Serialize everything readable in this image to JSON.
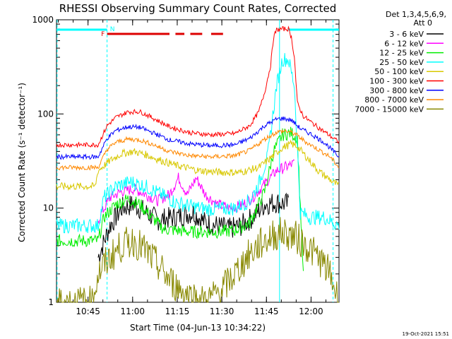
{
  "chart_data": {
    "type": "line",
    "title": "RHESSI Observing Summary Count Rates, Corrected",
    "xlabel": "Start Time (04-Jun-13 10:34:22)",
    "ylabel": "Corrected Count Rate (s⁻¹ detector⁻¹)",
    "yscale": "log",
    "ylim": [
      1,
      1000
    ],
    "xlim_minutes": [
      0,
      95
    ],
    "xticks": [
      {
        "label": "10:45",
        "t": 10.6
      },
      {
        "label": "11:00",
        "t": 25.6
      },
      {
        "label": "11:15",
        "t": 40.6
      },
      {
        "label": "11:30",
        "t": 55.6
      },
      {
        "label": "11:45",
        "t": 70.6
      },
      {
        "label": "12:00",
        "t": 85.6
      }
    ],
    "yticks": [
      {
        "label": "1",
        "v": 1
      },
      {
        "label": "10",
        "v": 10
      },
      {
        "label": "100",
        "v": 100
      },
      {
        "label": "1000",
        "v": 1000
      }
    ],
    "legend": {
      "header": [
        "Det 1,3,4,5,6,9,",
        "Att 0"
      ],
      "placement": "right"
    },
    "series": [
      {
        "name": "3 - 6 keV",
        "color": "#000000",
        "points": [
          [
            14,
            3
          ],
          [
            18,
            6.5
          ],
          [
            22,
            10
          ],
          [
            26,
            11
          ],
          [
            30,
            9
          ],
          [
            34,
            7.5
          ],
          [
            40,
            8
          ],
          [
            46,
            9
          ],
          [
            50,
            7
          ],
          [
            54,
            6.5
          ],
          [
            58,
            6
          ],
          [
            62,
            6.5
          ],
          [
            66,
            8
          ],
          [
            70,
            11
          ],
          [
            74,
            11.5
          ],
          [
            78,
            11
          ]
        ]
      },
      {
        "name": "6 - 12 keV",
        "color": "#ff00ff",
        "points": [
          [
            14,
            7.5
          ],
          [
            18,
            13
          ],
          [
            22,
            15
          ],
          [
            26,
            16
          ],
          [
            30,
            14
          ],
          [
            34,
            12
          ],
          [
            38,
            14
          ],
          [
            41,
            21
          ],
          [
            44,
            14
          ],
          [
            47,
            21
          ],
          [
            50,
            14
          ],
          [
            54,
            11
          ],
          [
            58,
            10
          ],
          [
            62,
            10.5
          ],
          [
            66,
            13
          ],
          [
            70,
            18
          ],
          [
            74,
            25
          ],
          [
            78,
            28
          ],
          [
            80,
            30
          ]
        ]
      },
      {
        "name": "12 - 25 keV",
        "color": "#00ee00",
        "points": [
          [
            0,
            4.5
          ],
          [
            13,
            4.5
          ],
          [
            14,
            4.5
          ],
          [
            16,
            8
          ],
          [
            20,
            11
          ],
          [
            24,
            12.5
          ],
          [
            28,
            11
          ],
          [
            32,
            8
          ],
          [
            36,
            6
          ],
          [
            40,
            5.8
          ],
          [
            45,
            5.6
          ],
          [
            50,
            5.6
          ],
          [
            55,
            5.6
          ],
          [
            60,
            5.8
          ],
          [
            65,
            7
          ],
          [
            70,
            15
          ],
          [
            73,
            40
          ],
          [
            76,
            60
          ],
          [
            79,
            63
          ],
          [
            81,
            55
          ],
          [
            83,
            2
          ]
        ]
      },
      {
        "name": "25 - 50 keV",
        "color": "#00ffff",
        "points": [
          [
            0,
            6.5
          ],
          [
            14,
            6.5
          ],
          [
            16,
            13
          ],
          [
            20,
            17
          ],
          [
            25,
            19
          ],
          [
            30,
            17
          ],
          [
            35,
            14
          ],
          [
            40,
            11.5
          ],
          [
            45,
            10.5
          ],
          [
            50,
            9.8
          ],
          [
            55,
            9.8
          ],
          [
            60,
            10
          ],
          [
            65,
            12
          ],
          [
            68,
            18
          ],
          [
            71,
            35
          ],
          [
            74,
            200
          ],
          [
            76,
            380
          ],
          [
            78,
            380
          ],
          [
            80,
            200
          ],
          [
            82,
            9
          ],
          [
            85,
            8
          ],
          [
            90,
            8
          ],
          [
            95,
            6.5
          ]
        ]
      },
      {
        "name": "50 - 100 keV",
        "color": "#d8c800",
        "points": [
          [
            0,
            17
          ],
          [
            13,
            17
          ],
          [
            14,
            25
          ],
          [
            18,
            32
          ],
          [
            22,
            38
          ],
          [
            26,
            40
          ],
          [
            30,
            37
          ],
          [
            34,
            33
          ],
          [
            40,
            28.5
          ],
          [
            48,
            25
          ],
          [
            55,
            24
          ],
          [
            62,
            24
          ],
          [
            68,
            27
          ],
          [
            72,
            34
          ],
          [
            76,
            44
          ],
          [
            79,
            48
          ],
          [
            81,
            45
          ],
          [
            84,
            35
          ],
          [
            88,
            25
          ],
          [
            92,
            20
          ],
          [
            95,
            17
          ]
        ]
      },
      {
        "name": "100 - 300 keV",
        "color": "#ff0000",
        "points": [
          [
            0,
            47
          ],
          [
            14,
            47
          ],
          [
            17,
            75
          ],
          [
            20,
            92
          ],
          [
            24,
            105
          ],
          [
            28,
            106
          ],
          [
            32,
            92
          ],
          [
            38,
            73
          ],
          [
            45,
            63
          ],
          [
            52,
            60
          ],
          [
            60,
            62
          ],
          [
            65,
            75
          ],
          [
            68,
            105
          ],
          [
            70,
            170
          ],
          [
            72,
            330
          ],
          [
            73,
            650
          ],
          [
            74,
            780
          ],
          [
            76,
            800
          ],
          [
            78,
            800
          ],
          [
            79,
            650
          ],
          [
            80,
            400
          ],
          [
            81,
            130
          ],
          [
            83,
            95
          ],
          [
            86,
            80
          ],
          [
            90,
            65
          ],
          [
            95,
            50
          ]
        ]
      },
      {
        "name": "300 - 800 keV",
        "color": "#0000ff",
        "points": [
          [
            0,
            35
          ],
          [
            14,
            35
          ],
          [
            17,
            55
          ],
          [
            20,
            67
          ],
          [
            24,
            73
          ],
          [
            28,
            72
          ],
          [
            32,
            64
          ],
          [
            38,
            53
          ],
          [
            45,
            48
          ],
          [
            52,
            46
          ],
          [
            60,
            47
          ],
          [
            65,
            55
          ],
          [
            70,
            75
          ],
          [
            74,
            88
          ],
          [
            76,
            90
          ],
          [
            79,
            86
          ],
          [
            82,
            70
          ],
          [
            86,
            60
          ],
          [
            90,
            50
          ],
          [
            95,
            35
          ]
        ]
      },
      {
        "name": "800 - 7000 keV",
        "color": "#ff8800",
        "points": [
          [
            0,
            27
          ],
          [
            14,
            27
          ],
          [
            17,
            42
          ],
          [
            20,
            50
          ],
          [
            24,
            54
          ],
          [
            28,
            53
          ],
          [
            32,
            48
          ],
          [
            38,
            40
          ],
          [
            45,
            36
          ],
          [
            52,
            35
          ],
          [
            60,
            36
          ],
          [
            65,
            41
          ],
          [
            70,
            54
          ],
          [
            74,
            64
          ],
          [
            77,
            66
          ],
          [
            80,
            62
          ],
          [
            84,
            50
          ],
          [
            88,
            42
          ],
          [
            92,
            35
          ],
          [
            95,
            27
          ]
        ]
      },
      {
        "name": "7000 - 15000 keV",
        "color": "#888800",
        "points": [
          [
            0,
            1
          ],
          [
            12,
            1
          ],
          [
            14,
            2
          ],
          [
            18,
            3
          ],
          [
            22,
            4
          ],
          [
            26,
            4.5
          ],
          [
            30,
            3.5
          ],
          [
            34,
            2.5
          ],
          [
            38,
            1.7
          ],
          [
            44,
            1.2
          ],
          [
            50,
            1
          ],
          [
            56,
            1.4
          ],
          [
            60,
            2
          ],
          [
            64,
            3
          ],
          [
            68,
            4
          ],
          [
            72,
            5
          ],
          [
            76,
            5.5
          ],
          [
            80,
            5
          ],
          [
            84,
            4
          ],
          [
            88,
            3
          ],
          [
            92,
            2
          ],
          [
            95,
            1
          ]
        ]
      }
    ],
    "flag_bars": {
      "attenuator_state_line": {
        "color": "#00ffff",
        "label": "N"
      },
      "flare_flag": {
        "color": "#dd0000",
        "label": "F"
      }
    },
    "footer_timestamp": "19-Oct-2021 15:51"
  }
}
